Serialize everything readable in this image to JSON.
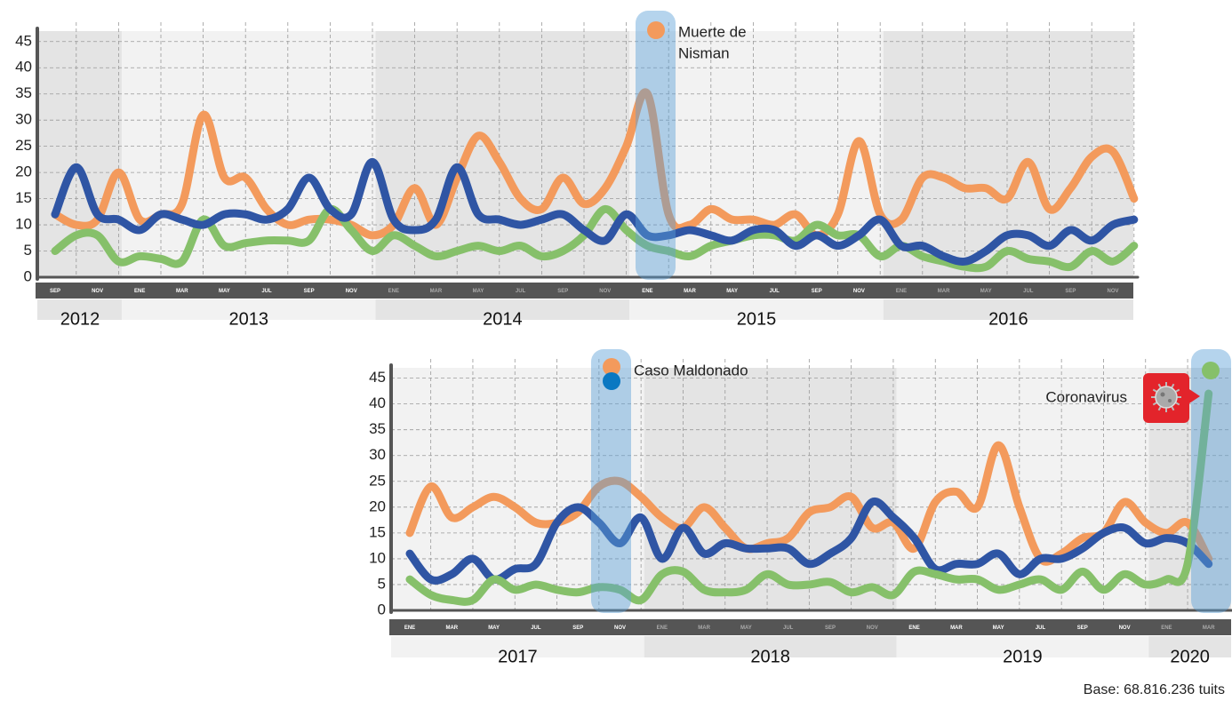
{
  "chart_data": [
    {
      "type": "line",
      "categories": [
        "SEP",
        null,
        "NOV",
        null,
        "ENE",
        null,
        "MAR",
        null,
        "MAY",
        null,
        "JUL",
        null,
        "SEP",
        null,
        "NOV",
        null,
        "ENE",
        null,
        "MAR",
        null,
        "MAY",
        null,
        "JUL",
        null,
        "SEP",
        null,
        "NOV",
        null,
        "ENE",
        null,
        "MAR",
        null,
        "MAY",
        null,
        "JUL",
        null,
        "SEP",
        null,
        "NOV",
        null,
        "ENE",
        null,
        "MAR",
        null,
        "MAY",
        null,
        "JUL",
        null,
        "SEP",
        null,
        "NOV",
        null
      ],
      "years": [
        "2012",
        "2013",
        "2014",
        "2015",
        "2016"
      ],
      "ylim": [
        0,
        47
      ],
      "yticks": [
        0,
        5,
        10,
        15,
        20,
        25,
        30,
        35,
        40,
        45
      ],
      "grid": true,
      "series": [
        {
          "color": "#f39a5c",
          "values": [
            12,
            10,
            11,
            20,
            11,
            12,
            14,
            31,
            19,
            19,
            13,
            10,
            11,
            11,
            10,
            8,
            10,
            17,
            10,
            19,
            27,
            22,
            15,
            13,
            19,
            14,
            17,
            25,
            35,
            12,
            10,
            13,
            11,
            11,
            10,
            12,
            8,
            12,
            26,
            12,
            11,
            19,
            19,
            17,
            17,
            15,
            22,
            13,
            17,
            23,
            24,
            15
          ]
        },
        {
          "color": "#86c06a",
          "values": [
            5,
            8,
            8,
            3,
            4,
            3.5,
            3,
            11,
            6,
            6.5,
            7,
            7,
            7,
            13,
            9,
            5,
            8,
            6,
            4,
            5,
            6,
            5,
            6,
            4,
            5,
            8,
            13,
            9,
            6,
            5,
            4,
            6,
            7,
            8,
            8,
            7,
            10,
            8,
            8,
            4,
            6,
            4,
            3,
            2,
            2,
            5,
            3.5,
            3,
            2,
            5,
            3,
            6
          ]
        },
        {
          "color": "#2f55a4",
          "values": [
            12,
            21,
            12,
            11,
            9,
            12,
            11,
            10,
            12,
            12,
            11,
            13,
            19,
            13,
            12,
            22,
            11,
            9,
            11,
            21,
            12,
            11,
            10,
            11,
            12,
            9,
            7,
            12,
            8,
            8,
            9,
            8,
            7,
            9,
            9,
            6,
            8,
            6,
            8,
            11,
            6,
            6,
            4,
            3,
            5,
            8,
            8,
            6,
            9,
            7,
            10,
            11
          ]
        }
      ],
      "annotations": [
        {
          "lines": [
            "Muerte de",
            "Nisman"
          ]
        }
      ]
    },
    {
      "type": "line",
      "categories": [
        "ENE",
        null,
        "MAR",
        null,
        "MAY",
        null,
        "JUL",
        null,
        "SEP",
        null,
        "NOV",
        null,
        "ENE",
        null,
        "MAR",
        null,
        "MAY",
        null,
        "JUL",
        null,
        "SEP",
        null,
        "NOV",
        null,
        "ENE",
        null,
        "MAR",
        null,
        "MAY",
        null,
        "JUL",
        null,
        "SEP",
        null,
        "NOV",
        null,
        "ENE",
        null,
        "MAR"
      ],
      "years": [
        "2017",
        "2018",
        "2019",
        "2020"
      ],
      "ylim": [
        0,
        47
      ],
      "yticks": [
        0,
        5,
        10,
        15,
        20,
        25,
        30,
        35,
        40,
        45
      ],
      "grid": true,
      "series": [
        {
          "color": "#f39a5c",
          "values": [
            15,
            24,
            18,
            20,
            22,
            20,
            17,
            17,
            19,
            24,
            25,
            22,
            18,
            16,
            20,
            16,
            12,
            13,
            14,
            19,
            20,
            22,
            16,
            17,
            12,
            21,
            23,
            20,
            32,
            20,
            10,
            11,
            14,
            15,
            21,
            17,
            15,
            17,
            10
          ]
        },
        {
          "color": "#2f55a4",
          "values": [
            11,
            6,
            7,
            10,
            6,
            8,
            9,
            17,
            20,
            17,
            13,
            18,
            10,
            16,
            11,
            13,
            12,
            12,
            12,
            9,
            11,
            14,
            21,
            18,
            14,
            8,
            9,
            9,
            11,
            7,
            10,
            10,
            12,
            15,
            16,
            13,
            14,
            13,
            9
          ]
        },
        {
          "color": "#86c06a",
          "values": [
            6,
            3,
            2,
            2,
            6,
            4,
            5,
            4,
            3.5,
            4.5,
            4,
            2,
            7,
            7.5,
            4,
            3.5,
            4,
            7,
            5,
            5,
            5.5,
            3.5,
            4.5,
            3,
            7.5,
            7,
            6,
            6,
            4,
            5,
            6,
            4,
            7.5,
            4,
            7,
            5,
            6,
            9,
            42
          ]
        }
      ],
      "annotations": [
        {
          "lines": [
            "Caso Maldonado"
          ]
        },
        {
          "lines": [
            "Coronavirus"
          ]
        }
      ]
    }
  ],
  "footer": "Base: 68.816.236 tuits"
}
